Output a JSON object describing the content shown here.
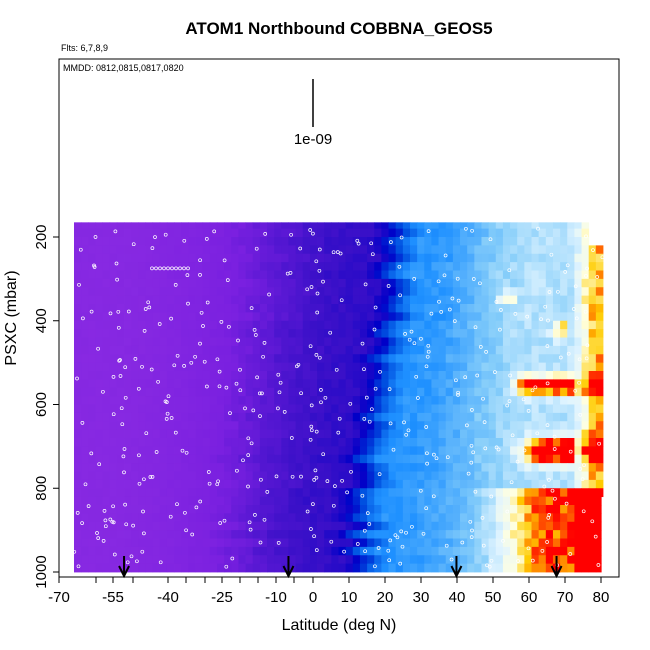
{
  "chart_data": {
    "type": "heatmap",
    "title": "ATOM1 Northbound COBBNA_GEOS5",
    "flights_note": "Flts: 6,7,8,9",
    "dates_note": "MMDD: 0812,0815,0817,0820",
    "scale_label": "1e-09",
    "xlabel": "Latitude (deg N)",
    "ylabel": "PSXC (mbar)",
    "xlim": [
      -70,
      80
    ],
    "ylim": [
      1000,
      160
    ],
    "x_tick_labels": [
      "-70",
      "-55",
      "-40",
      "-25",
      "-10",
      "0",
      "10",
      "20",
      "30",
      "40",
      "50",
      "60",
      "70",
      "80"
    ],
    "y_tick_labels": [
      "200",
      "400",
      "600",
      "800",
      "1000"
    ],
    "y_ticks": [
      200,
      400,
      600,
      800,
      1000
    ],
    "arrow_latitudes": [
      -54,
      -8,
      39,
      67
    ],
    "colors": {
      "low": "#8a2be2",
      "mid_low": "#0000c8",
      "mid": "#1e90ff",
      "mid_high": "#ffffe0",
      "high": "#ff0000"
    }
  }
}
